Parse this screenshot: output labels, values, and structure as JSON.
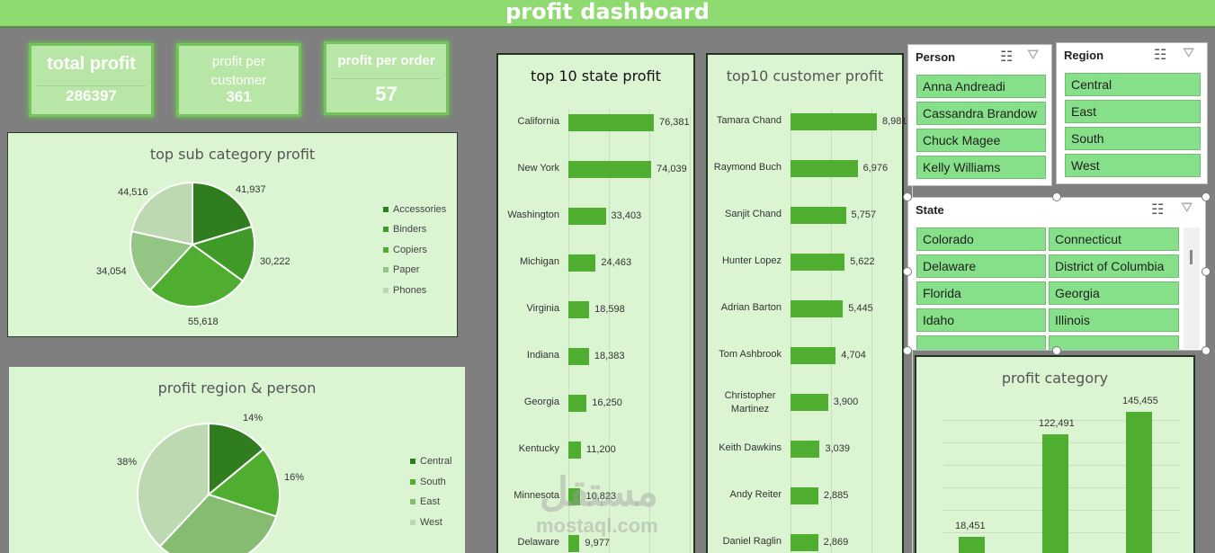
{
  "title": "profit  dashboard",
  "kpis": [
    {
      "label": "total profit",
      "value": "286397"
    },
    {
      "label": "profit per customer",
      "value": "361"
    },
    {
      "label": "profit per order",
      "value": "57"
    }
  ],
  "subcat_chart": {
    "title": "top sub category profit",
    "legend": [
      "Accessories",
      "Binders",
      "Copiers",
      "Paper",
      "Phones"
    ],
    "labels": [
      "41,937",
      "30,222",
      "55,618",
      "34,054",
      "44,516"
    ],
    "values": [
      41937,
      30222,
      55618,
      34054,
      44516
    ],
    "colors": [
      "#2f7d1f",
      "#3f9a27",
      "#4fad2f",
      "#93c684",
      "#bcd9b2"
    ]
  },
  "region_chart": {
    "title": "profit region & person",
    "legend": [
      "Central",
      "South",
      "East",
      "West"
    ],
    "labels": [
      "14%",
      "16%",
      "",
      "38%"
    ],
    "values": [
      14,
      16,
      32,
      38
    ],
    "colors": [
      "#2f7d1f",
      "#4fad2f",
      "#86bb72",
      "#bcd9b2"
    ]
  },
  "state_chart": {
    "title": "top 10 state profit",
    "categories": [
      "California",
      "New York",
      "Washington",
      "Michigan",
      "Virginia",
      "Indiana",
      "Georgia",
      "Kentucky",
      "Minnesota",
      "Delaware"
    ],
    "labels": [
      "76,381",
      "74,039",
      "33,403",
      "24,463",
      "18,598",
      "18,383",
      "16,250",
      "11,200",
      "10,823",
      "9,977"
    ],
    "values": [
      76381,
      74039,
      33403,
      24463,
      18598,
      18383,
      16250,
      11200,
      10823,
      9977
    ]
  },
  "customer_chart": {
    "title": "top10 customer profit",
    "categories": [
      "Tamara Chand",
      "Raymond Buch",
      "Sanjit Chand",
      "Hunter Lopez",
      "Adrian Barton",
      "Tom Ashbrook",
      "Christopher Martinez",
      "Keith Dawkins",
      "Andy Reiter",
      "Daniel Raglin"
    ],
    "labels": [
      "8,981",
      "6,976",
      "5,757",
      "5,622",
      "5,445",
      "4,704",
      "3,900",
      "3,039",
      "2,885",
      "2,869"
    ],
    "values": [
      8981,
      6976,
      5757,
      5622,
      5445,
      4704,
      3900,
      3039,
      2885,
      2869
    ]
  },
  "person_slicer": {
    "title": "Person",
    "items": [
      "Anna Andreadi",
      "Cassandra Brandow",
      "Chuck Magee",
      "Kelly Williams"
    ]
  },
  "region_slicer": {
    "title": "Region",
    "items": [
      "Central",
      "East",
      "South",
      "West"
    ]
  },
  "state_slicer": {
    "title": "State",
    "items": [
      "Colorado",
      "Connecticut",
      "Delaware",
      "District of Columbia",
      "Florida",
      "Georgia",
      "Idaho",
      "Illinois"
    ]
  },
  "category_chart": {
    "title": "profit  category",
    "labels": [
      "18,451",
      "122,491",
      "145,455"
    ],
    "values": [
      18451,
      122491,
      145455
    ]
  },
  "watermark": {
    "arabic": "مستقل",
    "latin": "mostaql.com"
  }
}
